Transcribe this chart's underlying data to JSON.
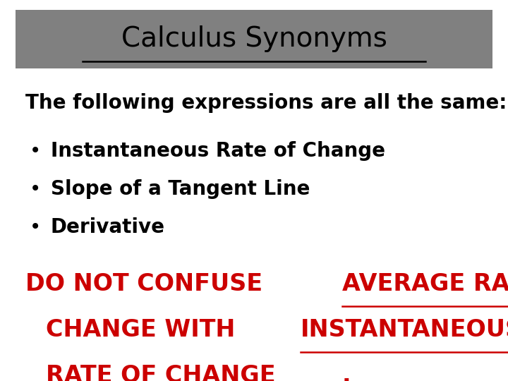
{
  "title": "Calculus Synonyms",
  "title_color": "#000000",
  "title_bg_color": "#808080",
  "bg_color": "#ffffff",
  "subtitle": "The following expressions are all the same:",
  "subtitle_color": "#000000",
  "bullet_items": [
    "Instantaneous Rate of Change",
    "Slope of a Tangent Line",
    "Derivative"
  ],
  "bullet_color": "#000000",
  "warning_color": "#cc0000",
  "title_fontsize": 28,
  "subtitle_fontsize": 20,
  "bullet_fontsize": 20,
  "warning_fontsize": 24
}
